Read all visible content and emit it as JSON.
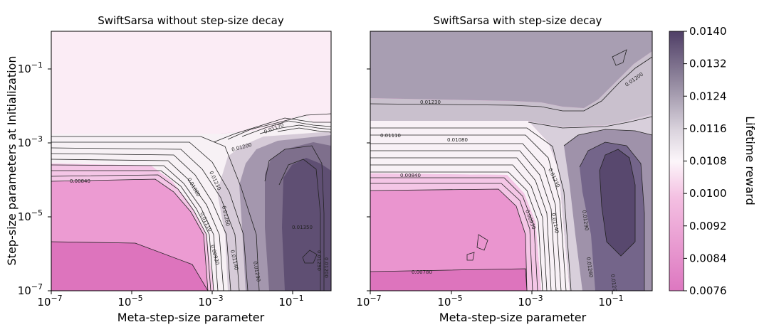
{
  "chart_data": [
    {
      "type": "heatmap",
      "title": "SwiftSarsa without step-size decay",
      "xlabel": "Meta-step-size parameter",
      "ylabel": "Step-size parameters at Initialization",
      "xscale": "log",
      "yscale": "log",
      "xlim": [
        1e-07,
        1
      ],
      "ylim": [
        1e-07,
        1
      ],
      "x_tick_labels": [
        "10^-7",
        "10^-5",
        "10^-3",
        "10^-1"
      ],
      "y_tick_labels": [
        "10^-7",
        "10^-5",
        "10^-3",
        "10^-1"
      ],
      "contour_labels": [
        "0.00840",
        "0.01200",
        "0.01170",
        "0.01080",
        "0.01230",
        "0.01260",
        "0.01110",
        "0.01140",
        "0.00930",
        "0.01290",
        "0.01350",
        "0.01290",
        "0.01200"
      ],
      "summary": {
        "high_alpha0_plateau": 0.0099,
        "low_alpha0_low_theta": 0.0082,
        "peak_region_value": 0.0135
      }
    },
    {
      "type": "heatmap",
      "title": "SwiftSarsa with step-size decay",
      "xlabel": "Meta-step-size parameter",
      "xscale": "log",
      "yscale": "log",
      "xlim": [
        1e-07,
        1
      ],
      "ylim": [
        1e-07,
        1
      ],
      "x_tick_labels": [
        "10^-7",
        "10^-5",
        "10^-3",
        "10^-1"
      ],
      "contour_labels": [
        "0.01230",
        "0.01200",
        "0.01110",
        "0.01080",
        "0.00840",
        "0.01230",
        "0.01290",
        "0.00930",
        "0.01140",
        "0.01290",
        "0.01260",
        "0.00780"
      ],
      "summary": {
        "high_alpha0_plateau": 0.0122,
        "low_alpha0_low_theta": 0.0081,
        "peak_region_value": 0.0138
      }
    }
  ],
  "colorbar": {
    "label": "Lifetime reward",
    "min": 0.0076,
    "max": 0.014,
    "ticks": [
      "0.0140",
      "0.0132",
      "0.0124",
      "0.0116",
      "0.0108",
      "0.0100",
      "0.0092",
      "0.0084",
      "0.0076"
    ],
    "color_low": "#dd77c0",
    "color_mid": "#fcf6fa",
    "color_high": "#4f3e66"
  }
}
